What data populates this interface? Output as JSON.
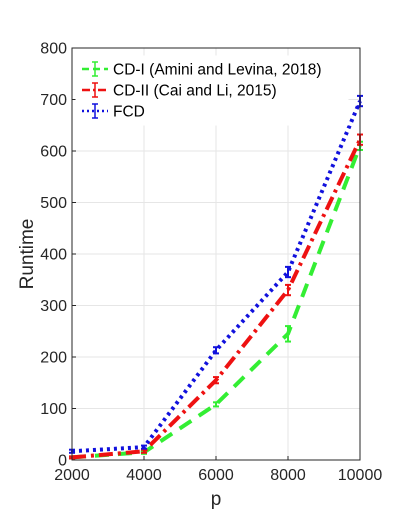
{
  "chart_data": {
    "type": "line",
    "title": "",
    "xlabel": "p",
    "ylabel": "Runtime",
    "xlim": [
      2000,
      10000
    ],
    "ylim": [
      0,
      800
    ],
    "x_ticks": [
      "2000",
      "4000",
      "6000",
      "8000",
      "10000"
    ],
    "y_ticks": [
      "0",
      "100",
      "200",
      "300",
      "400",
      "500",
      "600",
      "700",
      "800"
    ],
    "grid": true,
    "legend_position": "top-left",
    "x": [
      2000,
      4000,
      6000,
      8000,
      10000
    ],
    "series": [
      {
        "name": "CD-I (Amini and Levina, 2018)",
        "color": "#33ee33",
        "line_style": "dashed",
        "values": [
          5,
          15,
          108,
          245,
          610
        ],
        "errors": [
          2,
          3,
          4,
          15,
          8
        ]
      },
      {
        "name": "CD-II (Cai and Li, 2015)",
        "color": "#ee1111",
        "line_style": "dash-dot",
        "values": [
          5,
          17,
          155,
          330,
          622
        ],
        "errors": [
          2,
          3,
          6,
          10,
          10
        ]
      },
      {
        "name": "FCD",
        "color": "#1111dd",
        "line_style": "dotted",
        "values": [
          17,
          25,
          213,
          365,
          697
        ],
        "errors": [
          3,
          3,
          6,
          10,
          10
        ]
      }
    ]
  }
}
